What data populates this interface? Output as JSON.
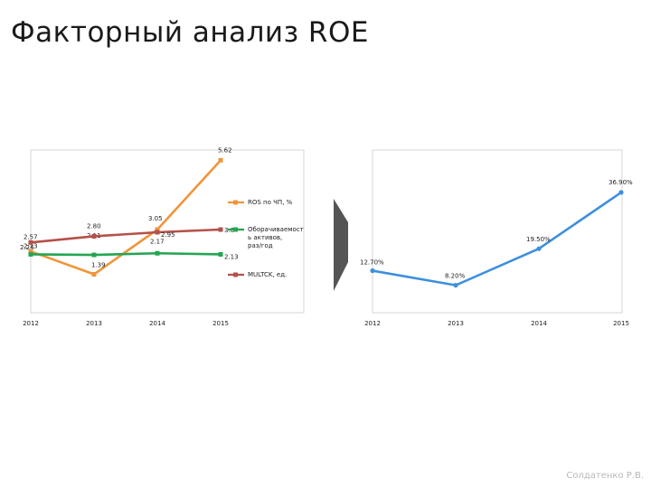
{
  "slide": {
    "title": "Факторный анализ ROE",
    "author": "Солдатенко Р.В."
  },
  "icons": {
    "arrow": "arrow-right-icon"
  },
  "chart_data": [
    {
      "type": "line",
      "categories": [
        "2012",
        "2013",
        "2014",
        "2015"
      ],
      "ylim": [
        0,
        6
      ],
      "legend_position": "right",
      "grid": false,
      "series": [
        {
          "name": "ROS по ЧП, %",
          "color": "#f0953a",
          "values": [
            2.24,
            1.39,
            3.05,
            5.62
          ],
          "labels": [
            "2.24",
            "1.39",
            "3.05",
            "5.62"
          ]
        },
        {
          "name": "Оборачиваемость активов, раз/год",
          "legend_lines": [
            "Оборачиваемост",
            "ь активов,",
            "раз/год"
          ],
          "color": "#24a552",
          "values": [
            2.13,
            2.11,
            2.17,
            2.13
          ],
          "labels": [
            "2.13",
            "2.11",
            "2.17",
            "2.13"
          ]
        },
        {
          "name": "MULTCK, ед.",
          "color": "#b5504a",
          "values": [
            2.57,
            2.8,
            2.95,
            3.05
          ],
          "labels": [
            "2.57",
            "2.80",
            "2.95",
            "3.0"
          ]
        }
      ]
    },
    {
      "type": "line",
      "categories": [
        "2012",
        "2013",
        "2014",
        "2015"
      ],
      "ylim": [
        0,
        50
      ],
      "grid": false,
      "series": [
        {
          "color": "#3e8fde",
          "values": [
            12.7,
            8.2,
            19.5,
            36.9
          ],
          "labels": [
            "12.70%",
            "8.20%",
            "19.50%",
            "36.90%"
          ]
        }
      ]
    }
  ]
}
